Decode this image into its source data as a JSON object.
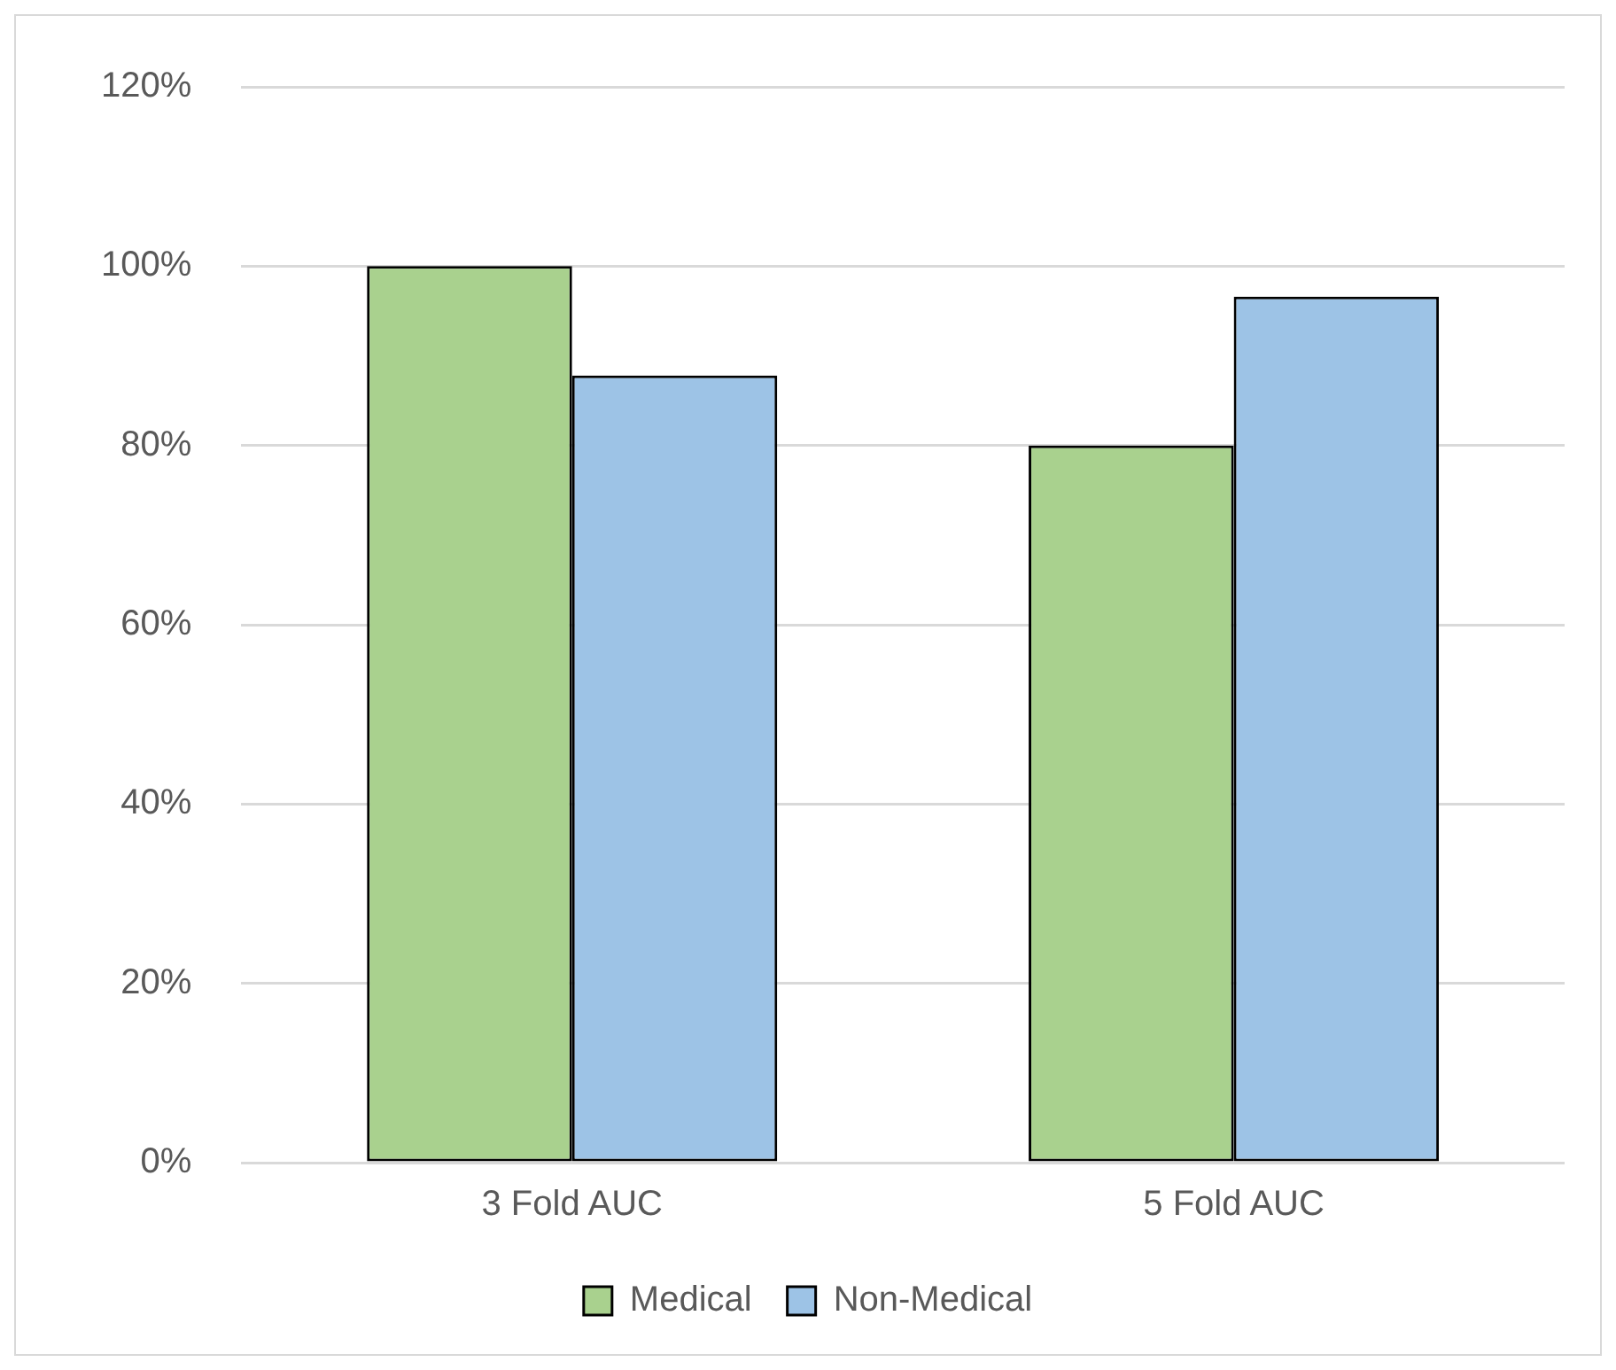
{
  "chart_data": {
    "type": "bar",
    "categories": [
      "3 Fold AUC",
      "5 Fold AUC"
    ],
    "series": [
      {
        "name": "Medical",
        "color": "#a9d18e",
        "values": [
          100,
          80
        ]
      },
      {
        "name": "Non-Medical",
        "color": "#9dc3e6",
        "values": [
          87.8,
          96.6
        ]
      }
    ],
    "ylim": [
      0,
      120
    ],
    "yticks": [
      {
        "value": 0,
        "label": "0%"
      },
      {
        "value": 20,
        "label": "20%"
      },
      {
        "value": 40,
        "label": "40%"
      },
      {
        "value": 60,
        "label": "60%"
      },
      {
        "value": 80,
        "label": "80%"
      },
      {
        "value": 100,
        "label": "100%"
      },
      {
        "value": 120,
        "label": "120%"
      }
    ],
    "grid": "y",
    "legend": "bottom"
  }
}
